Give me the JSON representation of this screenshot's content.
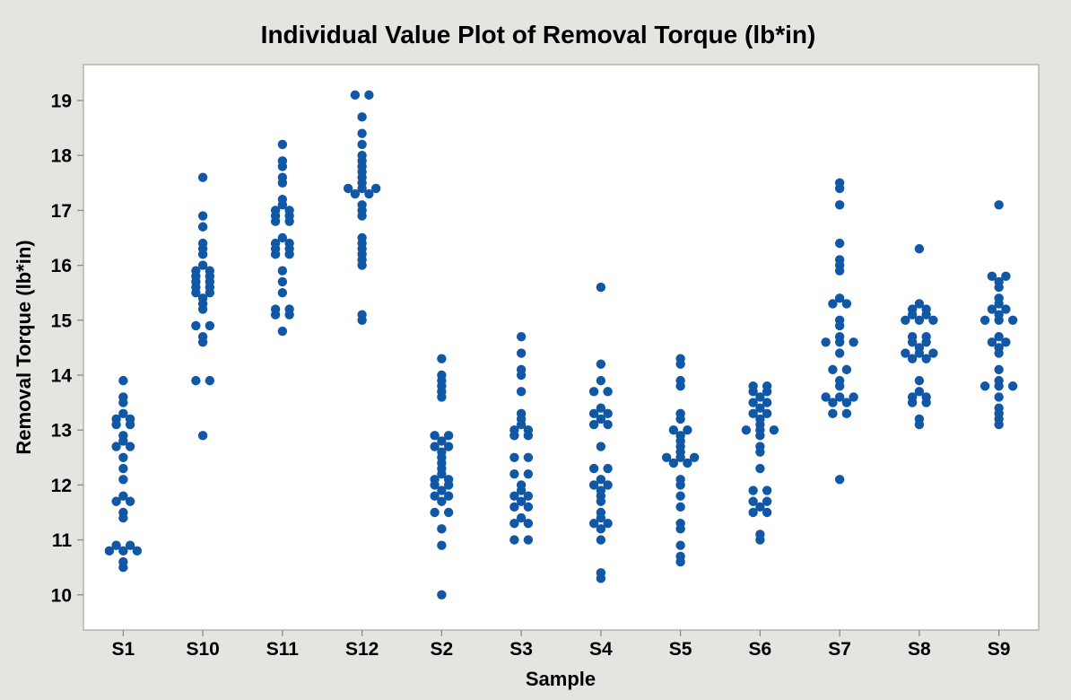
{
  "window": {
    "title": "Individual Value Plot of Removal Torque (lb*in)"
  },
  "chart_data": {
    "type": "scatter",
    "subtype": "individual_value_plot",
    "title": "Individual Value Plot of Removal Torque (lb*in)",
    "xlabel": "Sample",
    "ylabel": "Removal Torque (lb*in)",
    "categories": [
      "S1",
      "S10",
      "S11",
      "S12",
      "S2",
      "S3",
      "S4",
      "S5",
      "S6",
      "S7",
      "S8",
      "S9"
    ],
    "yticks": [
      10,
      11,
      12,
      13,
      14,
      15,
      16,
      17,
      18,
      19
    ],
    "ylim": [
      9.35,
      19.7
    ],
    "grid": false,
    "legend": "none",
    "marker": {
      "shape": "circle",
      "color": "#1057A5",
      "radius_px": 5.2
    },
    "colors": {
      "figure_background": "#E6E4E1",
      "plot_background": "#FFFFFF",
      "plot_border": "#ABABAB",
      "tick_color": "#8C8C8C",
      "text_color": "#000000",
      "marker_color": "#1057A5"
    },
    "series": [
      {
        "name": "S1",
        "values": [
          13.9,
          13.6,
          13.5,
          13.3,
          13.2,
          13.2,
          13.1,
          13.1,
          12.9,
          12.8,
          12.7,
          12.7,
          12.5,
          12.3,
          12.1,
          11.8,
          11.7,
          11.7,
          11.5,
          11.4,
          10.9,
          10.9,
          10.8,
          10.8,
          10.8,
          10.6,
          10.5
        ]
      },
      {
        "name": "S10",
        "values": [
          17.6,
          16.9,
          16.7,
          16.4,
          16.3,
          16.2,
          16.0,
          15.9,
          15.9,
          15.8,
          15.8,
          15.7,
          15.7,
          15.6,
          15.6,
          15.5,
          15.5,
          15.4,
          15.3,
          15.2,
          14.9,
          14.9,
          14.7,
          14.6,
          13.9,
          13.9,
          12.9
        ]
      },
      {
        "name": "S11",
        "values": [
          18.2,
          17.9,
          17.8,
          17.6,
          17.5,
          17.2,
          17.1,
          17.0,
          17.0,
          16.9,
          16.9,
          16.8,
          16.8,
          16.5,
          16.4,
          16.4,
          16.3,
          16.3,
          16.2,
          16.2,
          15.9,
          15.7,
          15.5,
          15.2,
          15.2,
          15.1,
          15.1,
          14.8
        ]
      },
      {
        "name": "S12",
        "values": [
          19.1,
          19.1,
          18.7,
          18.4,
          18.2,
          18.0,
          17.9,
          17.8,
          17.7,
          17.6,
          17.5,
          17.4,
          17.4,
          17.4,
          17.3,
          17.3,
          17.1,
          17.0,
          16.9,
          16.5,
          16.4,
          16.3,
          16.2,
          16.1,
          16.0,
          15.1,
          15.0
        ]
      },
      {
        "name": "S2",
        "values": [
          14.3,
          14.0,
          13.9,
          13.8,
          13.7,
          13.6,
          12.9,
          12.9,
          12.8,
          12.7,
          12.7,
          12.6,
          12.5,
          12.4,
          12.3,
          12.2,
          12.1,
          12.1,
          12.0,
          12.0,
          11.9,
          11.8,
          11.8,
          11.7,
          11.5,
          11.5,
          11.2,
          10.9,
          10.0
        ]
      },
      {
        "name": "S3",
        "values": [
          14.7,
          14.4,
          14.1,
          14.0,
          13.7,
          13.3,
          13.2,
          13.1,
          13.0,
          13.0,
          12.9,
          12.9,
          12.5,
          12.5,
          12.2,
          12.2,
          12.0,
          11.9,
          11.8,
          11.8,
          11.7,
          11.6,
          11.6,
          11.4,
          11.3,
          11.3,
          11.0,
          11.0
        ]
      },
      {
        "name": "S4",
        "values": [
          15.6,
          14.2,
          13.9,
          13.7,
          13.7,
          13.4,
          13.3,
          13.3,
          13.2,
          13.1,
          13.1,
          12.7,
          12.3,
          12.3,
          12.1,
          12.0,
          12.0,
          11.9,
          11.8,
          11.7,
          11.5,
          11.4,
          11.3,
          11.3,
          11.2,
          11.0,
          10.4,
          10.3
        ]
      },
      {
        "name": "S5",
        "values": [
          14.3,
          14.2,
          13.9,
          13.8,
          13.3,
          13.2,
          13.0,
          13.0,
          12.9,
          12.8,
          12.7,
          12.6,
          12.5,
          12.5,
          12.5,
          12.4,
          12.4,
          12.1,
          12.0,
          11.8,
          11.6,
          11.3,
          11.2,
          10.9,
          10.7,
          10.6
        ]
      },
      {
        "name": "S6",
        "values": [
          13.8,
          13.8,
          13.7,
          13.7,
          13.6,
          13.5,
          13.5,
          13.4,
          13.3,
          13.3,
          13.2,
          13.1,
          13.0,
          13.0,
          13.0,
          12.9,
          12.7,
          12.6,
          12.3,
          11.9,
          11.9,
          11.7,
          11.7,
          11.6,
          11.5,
          11.5,
          11.1,
          11.0
        ]
      },
      {
        "name": "S7",
        "values": [
          17.5,
          17.4,
          17.1,
          16.4,
          16.1,
          16.0,
          15.9,
          15.4,
          15.3,
          15.3,
          15.0,
          14.9,
          14.7,
          14.6,
          14.6,
          14.6,
          14.4,
          14.1,
          14.1,
          13.9,
          13.8,
          13.6,
          13.6,
          13.6,
          13.5,
          13.5,
          13.3,
          13.3,
          12.1
        ]
      },
      {
        "name": "S8",
        "values": [
          16.3,
          15.3,
          15.2,
          15.2,
          15.1,
          15.1,
          15.0,
          15.0,
          15.0,
          14.7,
          14.7,
          14.6,
          14.6,
          14.5,
          14.4,
          14.4,
          14.4,
          14.3,
          14.3,
          13.9,
          13.7,
          13.6,
          13.6,
          13.5,
          13.5,
          13.2,
          13.1
        ]
      },
      {
        "name": "S9",
        "values": [
          17.1,
          15.8,
          15.8,
          15.7,
          15.6,
          15.4,
          15.3,
          15.2,
          15.2,
          15.1,
          15.0,
          15.0,
          15.0,
          14.7,
          14.6,
          14.6,
          14.5,
          14.4,
          14.1,
          13.9,
          13.8,
          13.8,
          13.8,
          13.6,
          13.4,
          13.3,
          13.2,
          13.1
        ]
      }
    ]
  }
}
